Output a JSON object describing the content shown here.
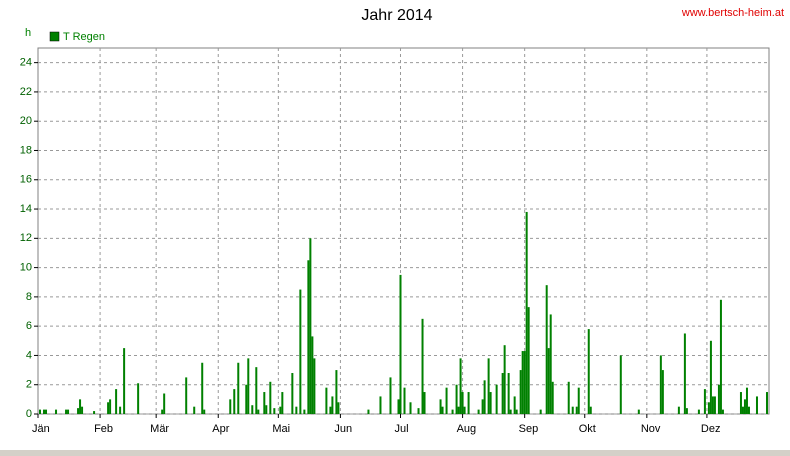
{
  "chart_data": {
    "type": "bar",
    "title": "Jahr 2014",
    "source": "www.bertsch-heim.at",
    "y_label": "h",
    "series": [
      {
        "name": "T Regen",
        "color": "#008000",
        "x": [
          2,
          4,
          5,
          10,
          15,
          16,
          21,
          22,
          23,
          29,
          36,
          37,
          40,
          42,
          44,
          51,
          63,
          64,
          75,
          79,
          83,
          84,
          97,
          99,
          101,
          105,
          106,
          108,
          110,
          111,
          114,
          115,
          117,
          119,
          122,
          123,
          128,
          130,
          132,
          134,
          136,
          137,
          138,
          139,
          145,
          147,
          148,
          150,
          151,
          166,
          172,
          177,
          181,
          182,
          184,
          187,
          191,
          193,
          194,
          202,
          203,
          205,
          208,
          210,
          211,
          212,
          213,
          214,
          216,
          221,
          223,
          224,
          226,
          227,
          230,
          233,
          234,
          236,
          237,
          239,
          240,
          242,
          243,
          244,
          245,
          246,
          252,
          255,
          256,
          257,
          258,
          266,
          268,
          270,
          271,
          276,
          277,
          292,
          301,
          312,
          313,
          321,
          324,
          325,
          331,
          334,
          336,
          337,
          338,
          339,
          341,
          342,
          343,
          352,
          353,
          354,
          355,
          356,
          360,
          365
        ],
        "values": [
          0.3,
          0.3,
          0.3,
          0.3,
          0.3,
          0.3,
          0.4,
          1.0,
          0.5,
          0.2,
          0.8,
          1.0,
          1.7,
          0.5,
          4.5,
          2.1,
          0.3,
          1.4,
          2.5,
          0.5,
          3.5,
          0.3,
          1.0,
          1.7,
          3.5,
          2.0,
          3.8,
          0.6,
          3.2,
          0.3,
          1.5,
          0.6,
          2.2,
          0.4,
          0.5,
          1.5,
          2.8,
          0.5,
          8.5,
          0.3,
          10.5,
          12.0,
          5.3,
          3.8,
          1.8,
          0.5,
          1.2,
          3.0,
          0.8,
          0.3,
          1.2,
          2.5,
          1.0,
          9.5,
          1.8,
          0.8,
          0.4,
          6.5,
          1.5,
          1.0,
          0.5,
          1.8,
          0.3,
          2.0,
          0.5,
          3.8,
          1.5,
          0.5,
          1.5,
          0.3,
          1.0,
          2.3,
          3.8,
          1.5,
          2.0,
          2.8,
          4.7,
          2.8,
          0.3,
          1.2,
          0.3,
          3.0,
          4.3,
          4.3,
          13.8,
          7.3,
          0.3,
          8.8,
          4.5,
          6.8,
          2.2,
          2.2,
          0.5,
          0.5,
          1.8,
          5.8,
          0.5,
          4.0,
          0.3,
          4.0,
          3.0,
          0.5,
          5.5,
          0.4,
          0.3,
          1.7,
          0.8,
          5.0,
          1.2,
          1.2,
          2.0,
          7.8,
          0.3,
          1.5,
          0.5,
          1.0,
          1.8,
          0.5,
          1.2,
          1.5
        ]
      }
    ],
    "xlim": [
      1,
      366
    ],
    "xticks": [
      {
        "value": 1,
        "label": "Jän"
      },
      {
        "value": 32,
        "label": "Feb"
      },
      {
        "value": 60,
        "label": "Mär"
      },
      {
        "value": 91,
        "label": "Apr"
      },
      {
        "value": 121,
        "label": "Mai"
      },
      {
        "value": 152,
        "label": "Jun"
      },
      {
        "value": 182,
        "label": "Jul"
      },
      {
        "value": 213,
        "label": "Aug"
      },
      {
        "value": 244,
        "label": "Sep"
      },
      {
        "value": 274,
        "label": "Okt"
      },
      {
        "value": 305,
        "label": "Nov"
      },
      {
        "value": 335,
        "label": "Dez"
      }
    ],
    "ylim": [
      0,
      25
    ],
    "yticks": [
      0,
      2,
      4,
      6,
      8,
      10,
      12,
      14,
      16,
      18,
      20,
      22,
      24
    ],
    "grid": true
  }
}
